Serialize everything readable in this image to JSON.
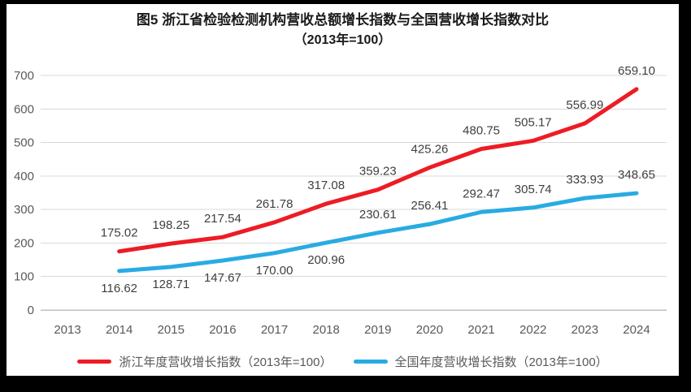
{
  "title": {
    "line1": "图5  浙江省检验检测机构营收总额增长指数与全国营收增长指数对比",
    "line2": "（2013年=100）"
  },
  "colors": {
    "zhejiang_red": "#ED1C24",
    "national_blue": "#29ABE2",
    "gridline": "#D9D9D9",
    "axis_line": "#BFBFBF",
    "axis_text": "#595959",
    "data_label_text": "#3F3F3F",
    "title_text": "#1A1A1A",
    "frame_border": "#000000",
    "background": "#FFFFFF"
  },
  "chart_data": {
    "type": "line",
    "title": "图5 浙江省检验检测机构营收总额增长指数与全国营收增长指数对比（2013年=100）",
    "categories": [
      "2013",
      "2014",
      "2015",
      "2016",
      "2017",
      "2018",
      "2019",
      "2020",
      "2021",
      "2022",
      "2023",
      "2024"
    ],
    "series": [
      {
        "name": "浙江年度营收增长指数（2013年=100）",
        "color": "#ED1C24",
        "start_category": "2014",
        "values": [
          175.02,
          198.25,
          217.54,
          261.78,
          317.08,
          359.23,
          425.26,
          480.75,
          505.17,
          556.99,
          659.1
        ],
        "label_position": [
          "above",
          "above",
          "above",
          "above",
          "above",
          "above",
          "above",
          "above",
          "above",
          "above",
          "above"
        ]
      },
      {
        "name": "全国年度营收增长指数（2013年=100）",
        "color": "#29ABE2",
        "start_category": "2014",
        "values": [
          116.62,
          128.71,
          147.67,
          170.0,
          200.96,
          230.61,
          256.41,
          292.47,
          305.74,
          333.93,
          348.65
        ],
        "label_position": [
          "below",
          "below",
          "below",
          "below",
          "below",
          "above",
          "above",
          "above",
          "above",
          "above",
          "above"
        ]
      }
    ],
    "ylim": [
      0,
      700
    ],
    "yticks": [
      0,
      100,
      200,
      300,
      400,
      500,
      600,
      700
    ],
    "grid": true,
    "data_labels": true,
    "data_label_decimals": 2,
    "legend_position": "bottom"
  }
}
